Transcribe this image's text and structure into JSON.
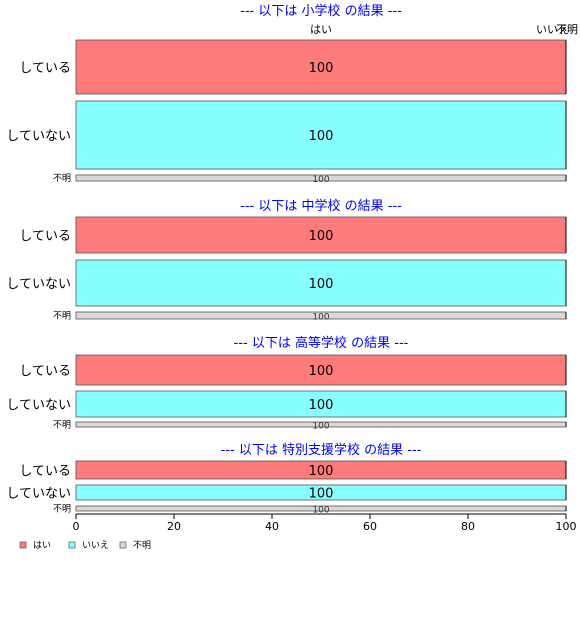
{
  "chart_data": {
    "type": "bar",
    "orientation": "horizontal",
    "stacked": true,
    "percent": true,
    "xlim": [
      0,
      100
    ],
    "xticks": [
      "0",
      "20",
      "40",
      "60",
      "80",
      "100"
    ],
    "column_headers": [
      "はい",
      "いいえ",
      "不明"
    ],
    "legend": {
      "placement": "bottom-left",
      "entries": [
        {
          "name": "はい",
          "color": "#ff7a7a"
        },
        {
          "name": "いいえ",
          "color": "#88ffff"
        },
        {
          "name": "不明",
          "color": "#d9d9d9"
        }
      ]
    },
    "series_colors": {
      "yes": "#ff7a7a",
      "no": "#88ffff",
      "unknown": "#d9d9d9"
    },
    "panels": [
      {
        "title": "--- 以下は 小学校 の結果 ---",
        "rows": [
          {
            "label": "している",
            "yes": 100,
            "no": 0,
            "unknown": 0,
            "value_label": "100"
          },
          {
            "label": "していない",
            "yes": 0,
            "no": 100,
            "unknown": 0,
            "value_label": "100"
          },
          {
            "label": "不明",
            "yes": 0,
            "no": 0,
            "unknown": 100,
            "value_label": "100"
          }
        ]
      },
      {
        "title": "--- 以下は 中学校 の結果 ---",
        "rows": [
          {
            "label": "している",
            "yes": 100,
            "no": 0,
            "unknown": 0,
            "value_label": "100"
          },
          {
            "label": "していない",
            "yes": 0,
            "no": 100,
            "unknown": 0,
            "value_label": "100"
          },
          {
            "label": "不明",
            "yes": 0,
            "no": 0,
            "unknown": 100,
            "value_label": "100"
          }
        ]
      },
      {
        "title": "--- 以下は 高等学校 の結果 ---",
        "rows": [
          {
            "label": "している",
            "yes": 100,
            "no": 0,
            "unknown": 0,
            "value_label": "100"
          },
          {
            "label": "していない",
            "yes": 0,
            "no": 100,
            "unknown": 0,
            "value_label": "100"
          },
          {
            "label": "不明",
            "yes": 0,
            "no": 0,
            "unknown": 100,
            "value_label": "100"
          }
        ]
      },
      {
        "title": "--- 以下は 特別支援学校 の結果 ---",
        "rows": [
          {
            "label": "している",
            "yes": 100,
            "no": 0,
            "unknown": 0,
            "value_label": "100"
          },
          {
            "label": "していない",
            "yes": 0,
            "no": 100,
            "unknown": 0,
            "value_label": "100"
          },
          {
            "label": "不明",
            "yes": 0,
            "no": 0,
            "unknown": 100,
            "value_label": "100"
          }
        ]
      }
    ]
  }
}
